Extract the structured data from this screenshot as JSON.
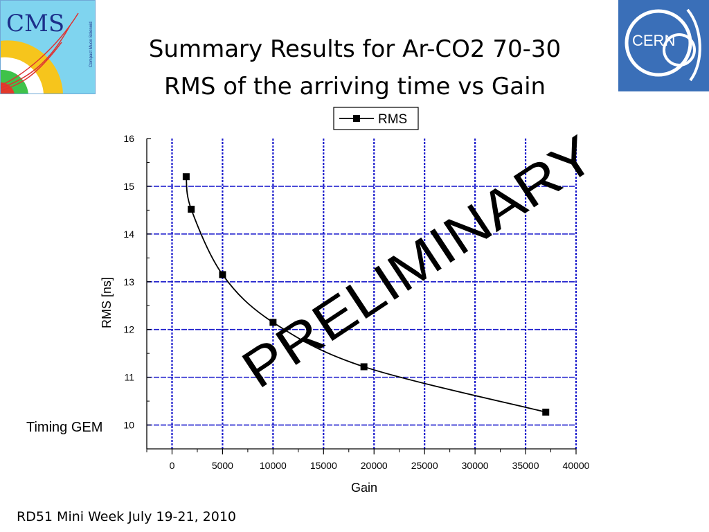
{
  "slide": {
    "title_line1": "Summary Results for Ar-CO2 70-30",
    "title_line2": "RMS of the arriving time vs Gain",
    "side_note": "Timing GEM",
    "footer": "RD51 Mini Week July 19-21, 2010",
    "watermark": "PRELIMINARY"
  },
  "logos": {
    "cms_text": "CMS",
    "cms_subtext": "Compact Muon Solenoid",
    "cern_text": "CERN"
  },
  "chart_data": {
    "type": "line",
    "xlabel": "Gain",
    "ylabel": "RMS [ns]",
    "xlim": [
      -2500,
      40000
    ],
    "ylim": [
      9.5,
      16
    ],
    "xticks": [
      0,
      5000,
      10000,
      15000,
      20000,
      25000,
      30000,
      35000,
      40000
    ],
    "yticks": [
      10,
      11,
      12,
      13,
      14,
      15,
      16
    ],
    "grid": true,
    "legend_placement": "top-center",
    "series": [
      {
        "name": "RMS",
        "x": [
          1400,
          1900,
          5000,
          10000,
          19000,
          37000
        ],
        "y": [
          15.2,
          14.52,
          13.15,
          12.15,
          11.22,
          10.27
        ]
      }
    ],
    "colors": {
      "grid": "#1a1acc",
      "line": "#000000",
      "marker": "#000000"
    }
  }
}
